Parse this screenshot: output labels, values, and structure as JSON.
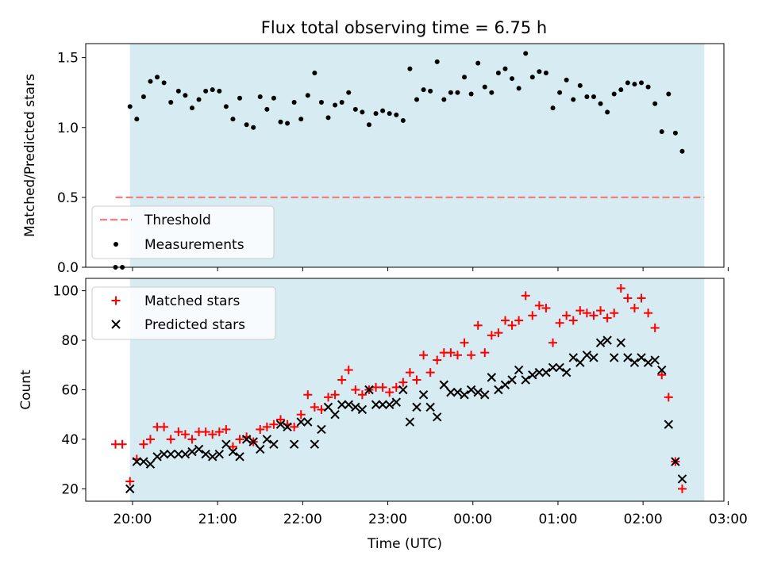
{
  "figure": {
    "title": "Flux total observing time = 6.75 h",
    "xlabel": "Time (UTC)",
    "x_ticks": [
      "20:00",
      "21:00",
      "22:00",
      "23:00",
      "00:00",
      "01:00",
      "02:00",
      "03:00"
    ]
  },
  "chart_data": [
    {
      "type": "scatter",
      "title": "Flux total observing time = 6.75 h",
      "ylabel": "Matched/Predicted stars",
      "xlabel": "",
      "x_unit": "hours after 20:00 UTC",
      "xlim": [
        -0.55,
        6.95
      ],
      "ylim": [
        0,
        1.6
      ],
      "y_ticks": [
        "0.0",
        "0.5",
        "1.0",
        "1.5"
      ],
      "observing_window": [
        -0.03,
        6.72
      ],
      "legend_position": "lower-left",
      "threshold": {
        "name": "Threshold",
        "value": 0.5,
        "x_start": -0.2,
        "x_end": 6.72,
        "color": "#f08080"
      },
      "series": [
        {
          "name": "Measurements",
          "color": "#000000",
          "marker": "dot",
          "points": [
            [
              -0.2,
              0.0
            ],
            [
              -0.12,
              0.0
            ],
            [
              -0.03,
              1.15
            ],
            [
              0.05,
              1.06
            ],
            [
              0.13,
              1.22
            ],
            [
              0.21,
              1.33
            ],
            [
              0.29,
              1.36
            ],
            [
              0.37,
              1.32
            ],
            [
              0.45,
              1.18
            ],
            [
              0.54,
              1.26
            ],
            [
              0.62,
              1.23
            ],
            [
              0.7,
              1.14
            ],
            [
              0.78,
              1.2
            ],
            [
              0.86,
              1.26
            ],
            [
              0.94,
              1.27
            ],
            [
              1.02,
              1.26
            ],
            [
              1.1,
              1.15
            ],
            [
              1.18,
              1.06
            ],
            [
              1.26,
              1.21
            ],
            [
              1.34,
              1.02
            ],
            [
              1.42,
              1.0
            ],
            [
              1.5,
              1.22
            ],
            [
              1.58,
              1.13
            ],
            [
              1.66,
              1.21
            ],
            [
              1.74,
              1.04
            ],
            [
              1.82,
              1.03
            ],
            [
              1.9,
              1.18
            ],
            [
              1.98,
              1.06
            ],
            [
              2.06,
              1.23
            ],
            [
              2.14,
              1.39
            ],
            [
              2.22,
              1.18
            ],
            [
              2.3,
              1.07
            ],
            [
              2.38,
              1.16
            ],
            [
              2.46,
              1.18
            ],
            [
              2.54,
              1.25
            ],
            [
              2.62,
              1.13
            ],
            [
              2.7,
              1.11
            ],
            [
              2.78,
              1.02
            ],
            [
              2.86,
              1.1
            ],
            [
              2.94,
              1.12
            ],
            [
              3.02,
              1.1
            ],
            [
              3.1,
              1.09
            ],
            [
              3.18,
              1.05
            ],
            [
              3.26,
              1.42
            ],
            [
              3.34,
              1.2
            ],
            [
              3.42,
              1.27
            ],
            [
              3.5,
              1.26
            ],
            [
              3.58,
              1.47
            ],
            [
              3.66,
              1.2
            ],
            [
              3.74,
              1.25
            ],
            [
              3.82,
              1.25
            ],
            [
              3.9,
              1.36
            ],
            [
              3.98,
              1.24
            ],
            [
              4.06,
              1.46
            ],
            [
              4.14,
              1.29
            ],
            [
              4.22,
              1.25
            ],
            [
              4.3,
              1.39
            ],
            [
              4.38,
              1.42
            ],
            [
              4.46,
              1.35
            ],
            [
              4.54,
              1.28
            ],
            [
              4.62,
              1.53
            ],
            [
              4.7,
              1.36
            ],
            [
              4.78,
              1.4
            ],
            [
              4.86,
              1.39
            ],
            [
              4.94,
              1.14
            ],
            [
              5.02,
              1.25
            ],
            [
              5.1,
              1.34
            ],
            [
              5.18,
              1.2
            ],
            [
              5.26,
              1.3
            ],
            [
              5.34,
              1.22
            ],
            [
              5.42,
              1.22
            ],
            [
              5.5,
              1.17
            ],
            [
              5.58,
              1.11
            ],
            [
              5.66,
              1.24
            ],
            [
              5.74,
              1.27
            ],
            [
              5.82,
              1.32
            ],
            [
              5.9,
              1.31
            ],
            [
              5.98,
              1.32
            ],
            [
              6.06,
              1.29
            ],
            [
              6.14,
              1.17
            ],
            [
              6.22,
              0.97
            ],
            [
              6.3,
              1.24
            ],
            [
              6.38,
              0.96
            ],
            [
              6.46,
              0.83
            ]
          ]
        }
      ]
    },
    {
      "type": "scatter",
      "ylabel": "Count",
      "xlabel": "Time (UTC)",
      "x_unit": "hours after 20:00 UTC",
      "xlim": [
        -0.55,
        6.95
      ],
      "ylim": [
        15,
        105
      ],
      "y_ticks": [
        "20",
        "40",
        "60",
        "80",
        "100"
      ],
      "observing_window": [
        -0.03,
        6.72
      ],
      "legend_position": "upper-left",
      "series": [
        {
          "name": "Matched stars",
          "color": "#ff0000",
          "marker": "plus",
          "points": [
            [
              -0.2,
              38
            ],
            [
              -0.12,
              38
            ],
            [
              -0.03,
              23
            ],
            [
              0.05,
              32
            ],
            [
              0.13,
              38
            ],
            [
              0.21,
              40
            ],
            [
              0.29,
              45
            ],
            [
              0.37,
              45
            ],
            [
              0.45,
              40
            ],
            [
              0.54,
              43
            ],
            [
              0.62,
              42
            ],
            [
              0.7,
              40
            ],
            [
              0.78,
              43
            ],
            [
              0.86,
              43
            ],
            [
              0.94,
              42
            ],
            [
              1.02,
              43
            ],
            [
              1.1,
              44
            ],
            [
              1.18,
              37
            ],
            [
              1.26,
              40
            ],
            [
              1.34,
              41
            ],
            [
              1.42,
              39
            ],
            [
              1.5,
              44
            ],
            [
              1.58,
              45
            ],
            [
              1.66,
              46
            ],
            [
              1.74,
              48
            ],
            [
              1.82,
              46
            ],
            [
              1.9,
              45
            ],
            [
              1.98,
              50
            ],
            [
              2.06,
              58
            ],
            [
              2.14,
              53
            ],
            [
              2.22,
              52
            ],
            [
              2.3,
              57
            ],
            [
              2.38,
              58
            ],
            [
              2.46,
              64
            ],
            [
              2.54,
              68
            ],
            [
              2.62,
              60
            ],
            [
              2.7,
              58
            ],
            [
              2.78,
              60
            ],
            [
              2.86,
              61
            ],
            [
              2.94,
              61
            ],
            [
              3.02,
              59
            ],
            [
              3.1,
              61
            ],
            [
              3.18,
              63
            ],
            [
              3.26,
              67
            ],
            [
              3.34,
              64
            ],
            [
              3.42,
              74
            ],
            [
              3.5,
              67
            ],
            [
              3.58,
              72
            ],
            [
              3.66,
              75
            ],
            [
              3.74,
              75
            ],
            [
              3.82,
              74
            ],
            [
              3.9,
              79
            ],
            [
              3.98,
              74
            ],
            [
              4.06,
              86
            ],
            [
              4.14,
              75
            ],
            [
              4.22,
              82
            ],
            [
              4.3,
              83
            ],
            [
              4.38,
              88
            ],
            [
              4.46,
              86
            ],
            [
              4.54,
              88
            ],
            [
              4.62,
              98
            ],
            [
              4.7,
              90
            ],
            [
              4.78,
              94
            ],
            [
              4.86,
              93
            ],
            [
              4.94,
              79
            ],
            [
              5.02,
              87
            ],
            [
              5.1,
              90
            ],
            [
              5.18,
              88
            ],
            [
              5.26,
              92
            ],
            [
              5.34,
              91
            ],
            [
              5.42,
              90
            ],
            [
              5.5,
              92
            ],
            [
              5.58,
              89
            ],
            [
              5.66,
              91
            ],
            [
              5.74,
              101
            ],
            [
              5.82,
              97
            ],
            [
              5.9,
              93
            ],
            [
              5.98,
              97
            ],
            [
              6.06,
              91
            ],
            [
              6.14,
              85
            ],
            [
              6.22,
              66
            ],
            [
              6.3,
              57
            ],
            [
              6.38,
              31
            ],
            [
              6.46,
              20
            ]
          ]
        },
        {
          "name": "Predicted stars",
          "color": "#000000",
          "marker": "cross",
          "points": [
            [
              -0.03,
              20
            ],
            [
              0.05,
              31
            ],
            [
              0.13,
              31
            ],
            [
              0.21,
              30
            ],
            [
              0.29,
              33
            ],
            [
              0.37,
              34
            ],
            [
              0.45,
              34
            ],
            [
              0.54,
              34
            ],
            [
              0.62,
              34
            ],
            [
              0.7,
              35
            ],
            [
              0.78,
              36
            ],
            [
              0.86,
              34
            ],
            [
              0.94,
              33
            ],
            [
              1.02,
              34
            ],
            [
              1.1,
              38
            ],
            [
              1.18,
              35
            ],
            [
              1.26,
              33
            ],
            [
              1.34,
              40
            ],
            [
              1.42,
              39
            ],
            [
              1.5,
              36
            ],
            [
              1.58,
              40
            ],
            [
              1.66,
              38
            ],
            [
              1.74,
              46
            ],
            [
              1.82,
              45
            ],
            [
              1.9,
              38
            ],
            [
              1.98,
              47
            ],
            [
              2.06,
              47
            ],
            [
              2.14,
              38
            ],
            [
              2.22,
              44
            ],
            [
              2.3,
              53
            ],
            [
              2.38,
              50
            ],
            [
              2.46,
              54
            ],
            [
              2.54,
              54
            ],
            [
              2.62,
              53
            ],
            [
              2.7,
              52
            ],
            [
              2.78,
              60
            ],
            [
              2.86,
              54
            ],
            [
              2.94,
              54
            ],
            [
              3.02,
              54
            ],
            [
              3.1,
              55
            ],
            [
              3.18,
              60
            ],
            [
              3.26,
              47
            ],
            [
              3.34,
              53
            ],
            [
              3.42,
              58
            ],
            [
              3.5,
              53
            ],
            [
              3.58,
              49
            ],
            [
              3.66,
              62
            ],
            [
              3.74,
              59
            ],
            [
              3.82,
              59
            ],
            [
              3.9,
              58
            ],
            [
              3.98,
              60
            ],
            [
              4.06,
              59
            ],
            [
              4.14,
              58
            ],
            [
              4.22,
              65
            ],
            [
              4.3,
              60
            ],
            [
              4.38,
              62
            ],
            [
              4.46,
              64
            ],
            [
              4.54,
              68
            ],
            [
              4.62,
              64
            ],
            [
              4.7,
              66
            ],
            [
              4.78,
              67
            ],
            [
              4.86,
              67
            ],
            [
              4.94,
              69
            ],
            [
              5.02,
              69
            ],
            [
              5.1,
              67
            ],
            [
              5.18,
              73
            ],
            [
              5.26,
              71
            ],
            [
              5.34,
              74
            ],
            [
              5.42,
              73
            ],
            [
              5.5,
              79
            ],
            [
              5.58,
              80
            ],
            [
              5.66,
              73
            ],
            [
              5.74,
              79
            ],
            [
              5.82,
              73
            ],
            [
              5.9,
              71
            ],
            [
              5.98,
              73
            ],
            [
              6.06,
              71
            ],
            [
              6.14,
              72
            ],
            [
              6.22,
              68
            ],
            [
              6.3,
              46
            ],
            [
              6.38,
              31
            ],
            [
              6.46,
              24
            ]
          ]
        }
      ]
    }
  ]
}
